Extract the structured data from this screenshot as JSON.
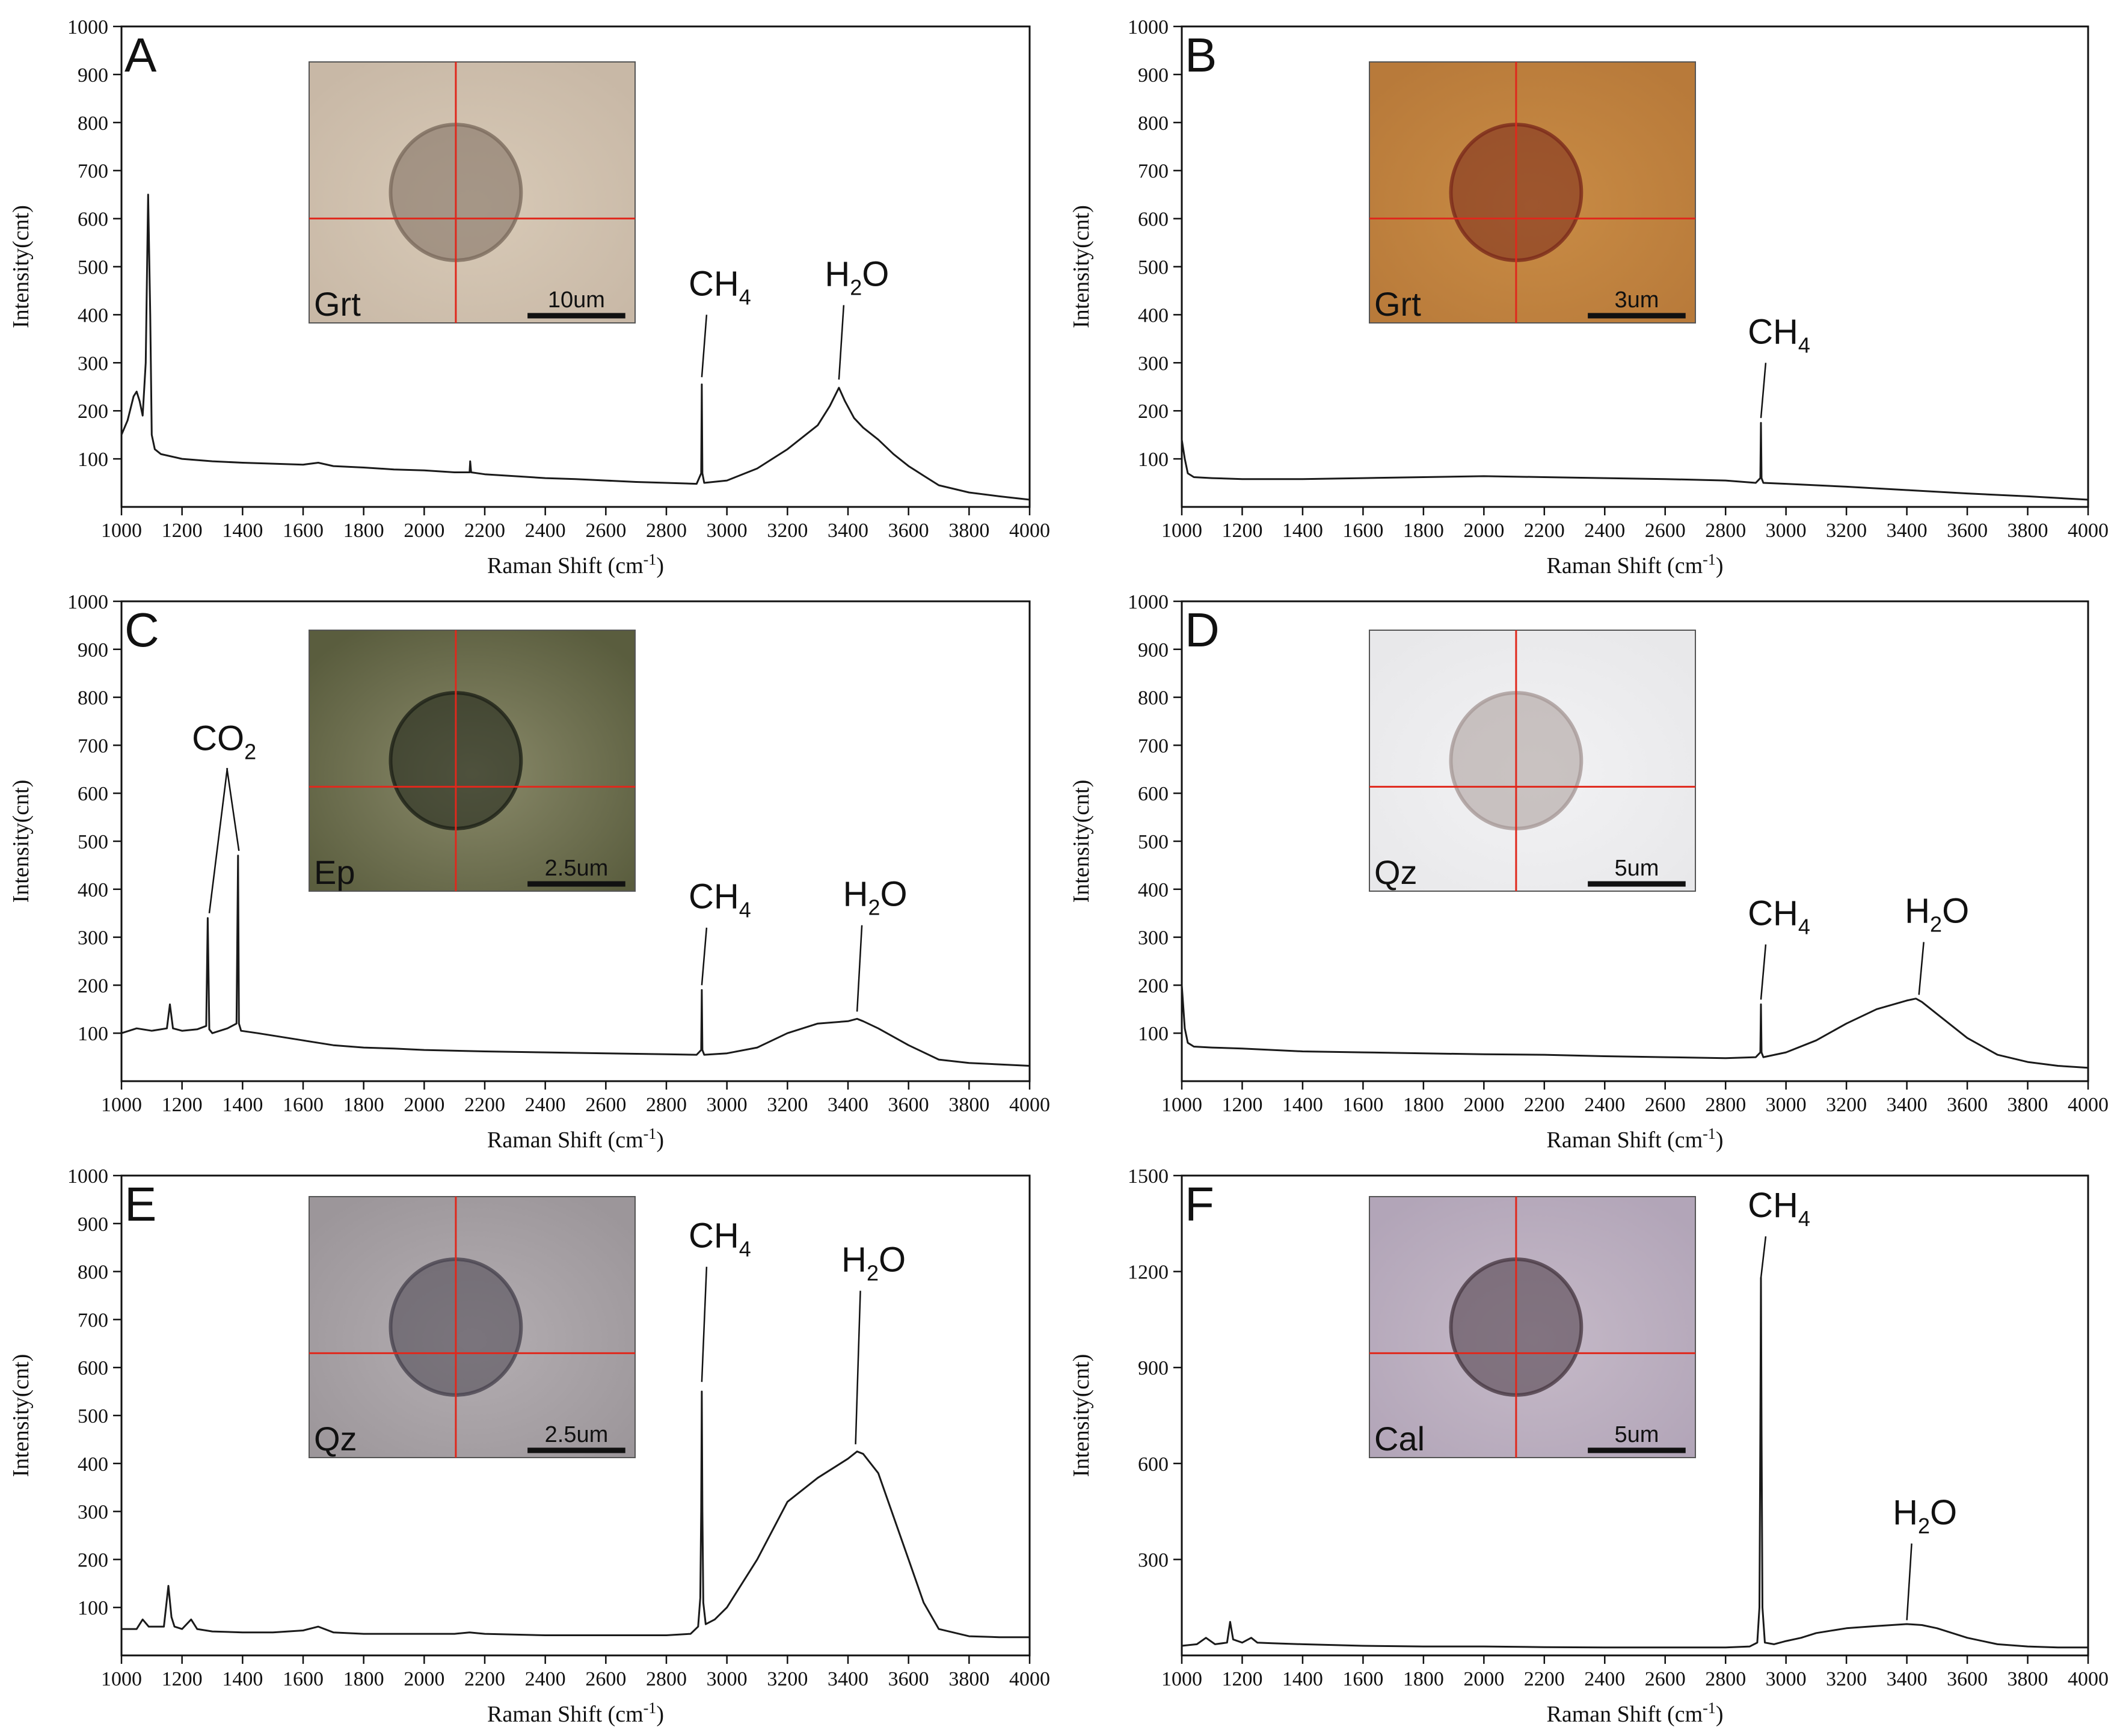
{
  "chart_data": [
    {
      "panel": "A",
      "type": "line",
      "xlabel": "Raman Shift (cm",
      "xlabel_sup": "-1",
      "xlabel_end": ")",
      "ylabel": "Intensity(cnt)",
      "xlim": [
        1000,
        4000
      ],
      "ylim": [
        0,
        1000
      ],
      "xticks": [
        1000,
        1200,
        1400,
        1600,
        1800,
        2000,
        2200,
        2400,
        2600,
        2800,
        3000,
        3200,
        3400,
        3600,
        3800,
        4000
      ],
      "yticks": [
        100,
        200,
        300,
        400,
        500,
        600,
        700,
        800,
        900,
        1000
      ],
      "grid": false,
      "series": [
        {
          "x": [
            1000,
            1020,
            1040,
            1050,
            1060,
            1070,
            1080,
            1088,
            1095,
            1100,
            1110,
            1130,
            1200,
            1300,
            1400,
            1500,
            1600,
            1650,
            1700,
            1800,
            1900,
            2000,
            2100,
            2150,
            2152,
            2155,
            2200,
            2300,
            2400,
            2500,
            2600,
            2700,
            2800,
            2900,
            2915,
            2917,
            2919,
            2925,
            3000,
            3100,
            3200,
            3300,
            3340,
            3370,
            3390,
            3420,
            3450,
            3500,
            3550,
            3600,
            3650,
            3700,
            3800,
            3900,
            4000
          ],
          "y": [
            150,
            180,
            230,
            240,
            220,
            190,
            300,
            650,
            400,
            150,
            120,
            110,
            100,
            95,
            92,
            90,
            88,
            92,
            85,
            82,
            78,
            76,
            72,
            72,
            95,
            72,
            68,
            64,
            60,
            58,
            55,
            52,
            50,
            48,
            70,
            255,
            70,
            50,
            55,
            80,
            120,
            170,
            210,
            248,
            220,
            185,
            165,
            140,
            110,
            85,
            65,
            45,
            30,
            22,
            15
          ]
        }
      ],
      "annotations": [
        {
          "text": "CH",
          "sub": "4",
          "x": 2917,
          "y": 270,
          "label_y": 440
        },
        {
          "text": "H",
          "sub": "2",
          "text_end": "O",
          "x": 3370,
          "y": 265,
          "label_y": 460
        }
      ],
      "inset": {
        "mineral": "Grt",
        "scale": "10um",
        "colors": [
          "#c8b8a6",
          "#d8cab7",
          "#7c6b5e"
        ]
      }
    },
    {
      "panel": "B",
      "type": "line",
      "xlabel": "Raman Shift (cm",
      "xlabel_sup": "-1",
      "xlabel_end": ")",
      "ylabel": "Intensity(cnt)",
      "xlim": [
        1000,
        4000
      ],
      "ylim": [
        0,
        1000
      ],
      "xticks": [
        1000,
        1200,
        1400,
        1600,
        1800,
        2000,
        2200,
        2400,
        2600,
        2800,
        3000,
        3200,
        3400,
        3600,
        3800,
        4000
      ],
      "yticks": [
        100,
        200,
        300,
        400,
        500,
        600,
        700,
        800,
        900,
        1000
      ],
      "grid": false,
      "series": [
        {
          "x": [
            1000,
            1010,
            1020,
            1040,
            1100,
            1200,
            1400,
            1600,
            1800,
            2000,
            2200,
            2400,
            2600,
            2800,
            2900,
            2915,
            2917,
            2919,
            2925,
            3000,
            3200,
            3400,
            3600,
            3800,
            4000
          ],
          "y": [
            140,
            100,
            70,
            62,
            60,
            58,
            58,
            60,
            62,
            64,
            62,
            60,
            58,
            55,
            50,
            60,
            175,
            60,
            50,
            48,
            42,
            35,
            28,
            22,
            15
          ]
        }
      ],
      "annotations": [
        {
          "text": "CH",
          "sub": "4",
          "x": 2917,
          "y": 185,
          "label_y": 340
        }
      ],
      "inset": {
        "mineral": "Grt",
        "scale": "3um",
        "colors": [
          "#b87a3a",
          "#c98c45",
          "#7a2a1c"
        ]
      }
    },
    {
      "panel": "C",
      "type": "line",
      "xlabel": "Raman Shift (cm",
      "xlabel_sup": "-1",
      "xlabel_end": ")",
      "ylabel": "Intensity(cnt)",
      "xlim": [
        1000,
        4000
      ],
      "ylim": [
        0,
        1000
      ],
      "xticks": [
        1000,
        1200,
        1400,
        1600,
        1800,
        2000,
        2200,
        2400,
        2600,
        2800,
        3000,
        3200,
        3400,
        3600,
        3800,
        4000
      ],
      "yticks": [
        100,
        200,
        300,
        400,
        500,
        600,
        700,
        800,
        900,
        1000
      ],
      "grid": false,
      "series": [
        {
          "x": [
            1000,
            1050,
            1100,
            1150,
            1160,
            1170,
            1200,
            1250,
            1280,
            1285,
            1290,
            1300,
            1350,
            1380,
            1385,
            1388,
            1395,
            1450,
            1500,
            1600,
            1700,
            1800,
            1900,
            2000,
            2200,
            2400,
            2600,
            2800,
            2900,
            2915,
            2917,
            2919,
            2925,
            3000,
            3100,
            3200,
            3300,
            3400,
            3430,
            3450,
            3500,
            3600,
            3700,
            3800,
            3900,
            4000
          ],
          "y": [
            100,
            110,
            105,
            110,
            160,
            110,
            105,
            108,
            115,
            340,
            108,
            100,
            110,
            120,
            470,
            120,
            105,
            100,
            95,
            85,
            75,
            70,
            68,
            65,
            62,
            60,
            58,
            56,
            55,
            65,
            190,
            65,
            55,
            58,
            70,
            100,
            120,
            125,
            130,
            125,
            110,
            75,
            45,
            38,
            35,
            32
          ]
        }
      ],
      "annotations": [
        {
          "text": "CO",
          "sub": "2",
          "x": 1290,
          "y": 350,
          "x2": 1388,
          "y2": 480,
          "label_y": 690
        },
        {
          "text": "CH",
          "sub": "4",
          "x": 2917,
          "y": 200,
          "label_y": 360
        },
        {
          "text": "H",
          "sub": "2",
          "text_end": "O",
          "x": 3430,
          "y": 145,
          "label_y": 365
        }
      ],
      "inset": {
        "mineral": "Ep",
        "scale": "2.5um",
        "colors": [
          "#5a5d3e",
          "#8a8a6a",
          "#1e2218"
        ]
      }
    },
    {
      "panel": "D",
      "type": "line",
      "xlabel": "Raman Shift (cm",
      "xlabel_sup": "-1",
      "xlabel_end": ")",
      "ylabel": "Intensity(cnt)",
      "xlim": [
        1000,
        4000
      ],
      "ylim": [
        0,
        1000
      ],
      "xticks": [
        1000,
        1200,
        1400,
        1600,
        1800,
        2000,
        2200,
        2400,
        2600,
        2800,
        3000,
        3200,
        3400,
        3600,
        3800,
        4000
      ],
      "yticks": [
        100,
        200,
        300,
        400,
        500,
        600,
        700,
        800,
        900,
        1000
      ],
      "grid": false,
      "series": [
        {
          "x": [
            1000,
            1010,
            1020,
            1040,
            1100,
            1200,
            1400,
            1600,
            1800,
            2000,
            2200,
            2400,
            2600,
            2800,
            2900,
            2915,
            2917,
            2919,
            2925,
            3000,
            3100,
            3200,
            3300,
            3400,
            3430,
            3450,
            3500,
            3600,
            3700,
            3800,
            3900,
            4000
          ],
          "y": [
            200,
            110,
            80,
            72,
            70,
            68,
            62,
            60,
            58,
            56,
            55,
            52,
            50,
            48,
            50,
            60,
            160,
            60,
            50,
            60,
            85,
            120,
            150,
            168,
            172,
            165,
            140,
            90,
            55,
            40,
            32,
            28
          ]
        }
      ],
      "annotations": [
        {
          "text": "CH",
          "sub": "4",
          "x": 2917,
          "y": 170,
          "label_y": 325
        },
        {
          "text": "H",
          "sub": "2",
          "text_end": "O",
          "x": 3440,
          "y": 180,
          "label_y": 330
        }
      ],
      "inset": {
        "mineral": "Qz",
        "scale": "5um",
        "colors": [
          "#e8e8ea",
          "#f2f2f4",
          "#a89a98"
        ]
      }
    },
    {
      "panel": "E",
      "type": "line",
      "xlabel": "Raman Shift (cm",
      "xlabel_sup": "-1",
      "xlabel_end": ")",
      "ylabel": "Intensity(cnt)",
      "xlim": [
        1000,
        4000
      ],
      "ylim": [
        0,
        1000
      ],
      "xticks": [
        1000,
        1200,
        1400,
        1600,
        1800,
        2000,
        2200,
        2400,
        2600,
        2800,
        3000,
        3200,
        3400,
        3600,
        3800,
        4000
      ],
      "yticks": [
        100,
        200,
        300,
        400,
        500,
        600,
        700,
        800,
        900,
        1000
      ],
      "grid": false,
      "series": [
        {
          "x": [
            1000,
            1050,
            1070,
            1090,
            1140,
            1155,
            1165,
            1175,
            1200,
            1230,
            1250,
            1300,
            1400,
            1500,
            1600,
            1650,
            1700,
            1800,
            2000,
            2100,
            2150,
            2200,
            2400,
            2600,
            2800,
            2880,
            2905,
            2912,
            2915,
            2917,
            2919,
            2922,
            2930,
            2960,
            3000,
            3100,
            3200,
            3300,
            3350,
            3400,
            3430,
            3450,
            3500,
            3550,
            3600,
            3650,
            3700,
            3800,
            3900,
            4000
          ],
          "y": [
            55,
            55,
            75,
            60,
            60,
            145,
            80,
            60,
            55,
            75,
            55,
            50,
            48,
            48,
            52,
            60,
            48,
            45,
            45,
            45,
            48,
            45,
            42,
            42,
            42,
            45,
            60,
            120,
            300,
            550,
            300,
            110,
            65,
            75,
            100,
            200,
            320,
            370,
            390,
            410,
            425,
            420,
            380,
            290,
            200,
            110,
            55,
            40,
            38,
            38
          ]
        }
      ],
      "annotations": [
        {
          "text": "CH",
          "sub": "4",
          "x": 2917,
          "y": 570,
          "label_y": 850
        },
        {
          "text": "H",
          "sub": "2",
          "text_end": "O",
          "x": 3425,
          "y": 440,
          "label_y": 800
        }
      ],
      "inset": {
        "mineral": "Qz",
        "scale": "2.5um",
        "colors": [
          "#9c969a",
          "#b4aeb2",
          "#4a4550"
        ]
      }
    },
    {
      "panel": "F",
      "type": "line",
      "xlabel": "Raman Shift (cm",
      "xlabel_sup": "-1",
      "xlabel_end": ")",
      "ylabel": "Intensity(cnt)",
      "xlim": [
        1000,
        4000
      ],
      "ylim": [
        0,
        1500
      ],
      "xticks": [
        1000,
        1200,
        1400,
        1600,
        1800,
        2000,
        2200,
        2400,
        2600,
        2800,
        3000,
        3200,
        3400,
        3600,
        3800,
        4000
      ],
      "yticks": [
        300,
        600,
        900,
        1200,
        1500
      ],
      "grid": false,
      "series": [
        {
          "x": [
            1000,
            1050,
            1080,
            1110,
            1150,
            1160,
            1170,
            1200,
            1230,
            1250,
            1300,
            1400,
            1600,
            1800,
            2000,
            2200,
            2400,
            2600,
            2800,
            2880,
            2905,
            2912,
            2915,
            2917,
            2919,
            2922,
            2930,
            2960,
            3000,
            3050,
            3100,
            3200,
            3300,
            3400,
            3450,
            3500,
            3600,
            3700,
            3800,
            3900,
            4000
          ],
          "y": [
            30,
            35,
            55,
            35,
            40,
            105,
            50,
            40,
            55,
            40,
            38,
            35,
            30,
            28,
            28,
            26,
            25,
            25,
            25,
            28,
            40,
            150,
            700,
            1180,
            700,
            150,
            40,
            35,
            45,
            55,
            70,
            85,
            92,
            98,
            95,
            85,
            55,
            35,
            28,
            25,
            25
          ]
        }
      ],
      "annotations": [
        {
          "text": "CH",
          "sub": "4",
          "x": 2917,
          "y": 1180,
          "label_y": 1370
        },
        {
          "text": "H",
          "sub": "2",
          "text_end": "O",
          "x": 3400,
          "y": 110,
          "label_y": 410
        }
      ],
      "inset": {
        "mineral": "Cal",
        "scale": "5um",
        "colors": [
          "#b2a5b8",
          "#c6bac8",
          "#4a3b45"
        ]
      }
    }
  ]
}
